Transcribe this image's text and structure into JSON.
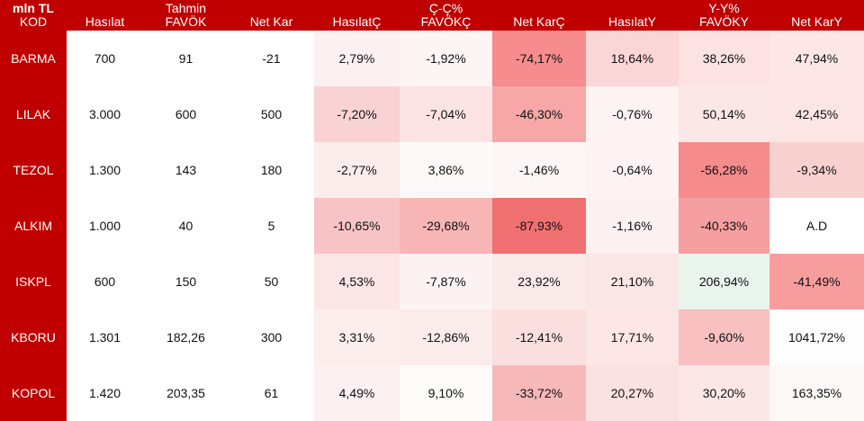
{
  "header": {
    "corner_unit": "mln TL",
    "corner_code": "KOD",
    "columns": [
      {
        "line1": "",
        "line2": "Hasılat"
      },
      {
        "line1": "Tahmin",
        "line2": "FAVÖK"
      },
      {
        "line1": "",
        "line2": "Net Kar"
      },
      {
        "line1": "",
        "line2": "HasılatÇ"
      },
      {
        "line1": "Ç-Ç%",
        "line2": "FAVÖKÇ"
      },
      {
        "line1": "",
        "line2": "Net KarÇ"
      },
      {
        "line1": "",
        "line2": "HasılatY"
      },
      {
        "line1": "Y-Y%",
        "line2": "FAVÖKY"
      },
      {
        "line1": "",
        "line2": "Net KarY"
      }
    ]
  },
  "rows": [
    {
      "code": "BARMA",
      "cells": [
        "700",
        "91",
        "-21",
        "2,79%",
        "-1,92%",
        "-74,17%",
        "18,64%",
        "38,26%",
        "47,94%"
      ]
    },
    {
      "code": "LILAK",
      "cells": [
        "3.000",
        "600",
        "500",
        "-7,20%",
        "-7,04%",
        "-46,30%",
        "-0,76%",
        "50,14%",
        "42,45%"
      ]
    },
    {
      "code": "TEZOL",
      "cells": [
        "1.300",
        "143",
        "180",
        "-2,77%",
        "3,86%",
        "-1,46%",
        "-0,64%",
        "-56,28%",
        "-9,34%"
      ]
    },
    {
      "code": "ALKIM",
      "cells": [
        "1.000",
        "40",
        "5",
        "-10,65%",
        "-29,68%",
        "-87,93%",
        "-1,16%",
        "-40,33%",
        "A.D"
      ]
    },
    {
      "code": "ISKPL",
      "cells": [
        "600",
        "150",
        "50",
        "4,53%",
        "-7,87%",
        "23,92%",
        "21,10%",
        "206,94%",
        "-41,49%"
      ]
    },
    {
      "code": "KBORU",
      "cells": [
        "1.301",
        "182,26",
        "300",
        "3,31%",
        "-12,86%",
        "-12,41%",
        "17,71%",
        "-9,60%",
        "1041,72%"
      ]
    },
    {
      "code": "KOPOL",
      "cells": [
        "1.420",
        "203,35",
        "61",
        "4,49%",
        "9,10%",
        "-33,72%",
        "20,27%",
        "30,20%",
        "163,35%"
      ]
    }
  ],
  "heatmap_colors": [
    [
      "#fdf0f0",
      "#fdf4f4",
      "#f68c8d",
      "#fbd6d6",
      "#fce2e2",
      "#fce6e6"
    ],
    [
      "#f9d2d3",
      "#fbe3e3",
      "#f7a7a8",
      "#fdf3f3",
      "#fce7e7",
      "#fce5e5"
    ],
    [
      "#fcecec",
      "#fdf9f9",
      "#fdf6f6",
      "#fdf3f3",
      "#f68b8c",
      "#f9d0d0"
    ],
    [
      "#f8c3c4",
      "#f8b5b6",
      "#f07071",
      "#fdf1f1",
      "#f69fa0",
      "#ffffff"
    ],
    [
      "#fbe6e7",
      "#fcf2f2",
      "#fae9e9",
      "#fbe6e6",
      "#e9f5ec",
      "#f89d9e"
    ],
    [
      "#fdeeee",
      "#fcebeb",
      "#fbdfdf",
      "#fde6e6",
      "#f9c0c1",
      "#fcfdfc"
    ],
    [
      "#fdf0f0",
      "#fdfafa",
      "#f7b8b9",
      "#fbe2e2",
      "#fce7e7",
      "#fdf8f8"
    ]
  ],
  "colors": {
    "header_bg": "#c00000",
    "header_text": "#ffffff",
    "cell_text": "#111111"
  }
}
